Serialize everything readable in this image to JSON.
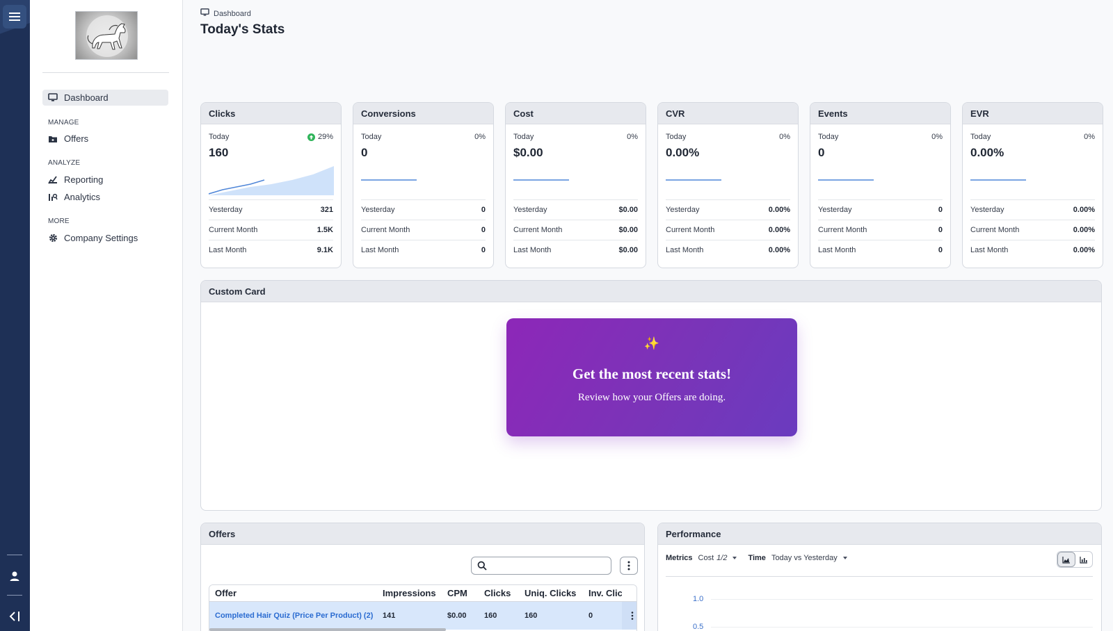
{
  "sidebar": {
    "nav": {
      "dashboard": "Dashboard",
      "manage": "MANAGE",
      "offers": "Offers",
      "analyze": "ANALYZE",
      "reporting": "Reporting",
      "analytics": "Analytics",
      "more": "MORE",
      "company_settings": "Company Settings"
    }
  },
  "header": {
    "breadcrumb": "Dashboard",
    "title": "Today's Stats"
  },
  "stats": [
    {
      "title": "Clicks",
      "today_label": "Today",
      "change": "29%",
      "change_up": true,
      "value": "160",
      "rows": [
        {
          "label": "Yesterday",
          "value": "321"
        },
        {
          "label": "Current Month",
          "value": "1.5K"
        },
        {
          "label": "Last Month",
          "value": "9.1K"
        }
      ]
    },
    {
      "title": "Conversions",
      "today_label": "Today",
      "change": "0%",
      "change_up": false,
      "value": "0",
      "rows": [
        {
          "label": "Yesterday",
          "value": "0"
        },
        {
          "label": "Current Month",
          "value": "0"
        },
        {
          "label": "Last Month",
          "value": "0"
        }
      ]
    },
    {
      "title": "Cost",
      "today_label": "Today",
      "change": "0%",
      "change_up": false,
      "value": "$0.00",
      "rows": [
        {
          "label": "Yesterday",
          "value": "$0.00"
        },
        {
          "label": "Current Month",
          "value": "$0.00"
        },
        {
          "label": "Last Month",
          "value": "$0.00"
        }
      ]
    },
    {
      "title": "CVR",
      "today_label": "Today",
      "change": "0%",
      "change_up": false,
      "value": "0.00%",
      "rows": [
        {
          "label": "Yesterday",
          "value": "0.00%"
        },
        {
          "label": "Current Month",
          "value": "0.00%"
        },
        {
          "label": "Last Month",
          "value": "0.00%"
        }
      ]
    },
    {
      "title": "Events",
      "today_label": "Today",
      "change": "0%",
      "change_up": false,
      "value": "0",
      "rows": [
        {
          "label": "Yesterday",
          "value": "0"
        },
        {
          "label": "Current Month",
          "value": "0"
        },
        {
          "label": "Last Month",
          "value": "0"
        }
      ]
    },
    {
      "title": "EVR",
      "today_label": "Today",
      "change": "0%",
      "change_up": false,
      "value": "0.00%",
      "rows": [
        {
          "label": "Yesterday",
          "value": "0.00%"
        },
        {
          "label": "Current Month",
          "value": "0.00%"
        },
        {
          "label": "Last Month",
          "value": "0.00%"
        }
      ]
    }
  ],
  "custom_card": {
    "title": "Custom Card",
    "promo_icon": "✨",
    "promo_title": "Get the most recent stats!",
    "promo_subtitle": "Review how your Offers are doing."
  },
  "offers": {
    "title": "Offers",
    "search_placeholder": "",
    "columns": [
      "Offer",
      "Impressions",
      "CPM",
      "Clicks",
      "Uniq. Clicks",
      "Inv. Clic"
    ],
    "rows": [
      {
        "offer": "Completed Hair Quiz (Price Per Product) (2)",
        "impressions": "141",
        "cpm": "$0.00",
        "clicks": "160",
        "uniq_clicks": "160",
        "inv_clicks": "0"
      }
    ]
  },
  "performance": {
    "title": "Performance",
    "metrics_label": "Metrics",
    "metrics_value": "Cost",
    "metrics_count": "1/2",
    "time_label": "Time",
    "time_value": "Today vs Yesterday",
    "y_ticks": [
      "1.0",
      "0.5"
    ]
  },
  "colors": {
    "rail": "#1e3056",
    "accent_blue": "#2b6cd1",
    "positive": "#2fb45a",
    "promo_start": "#8d27b8",
    "promo_end": "#6a3bbf"
  }
}
